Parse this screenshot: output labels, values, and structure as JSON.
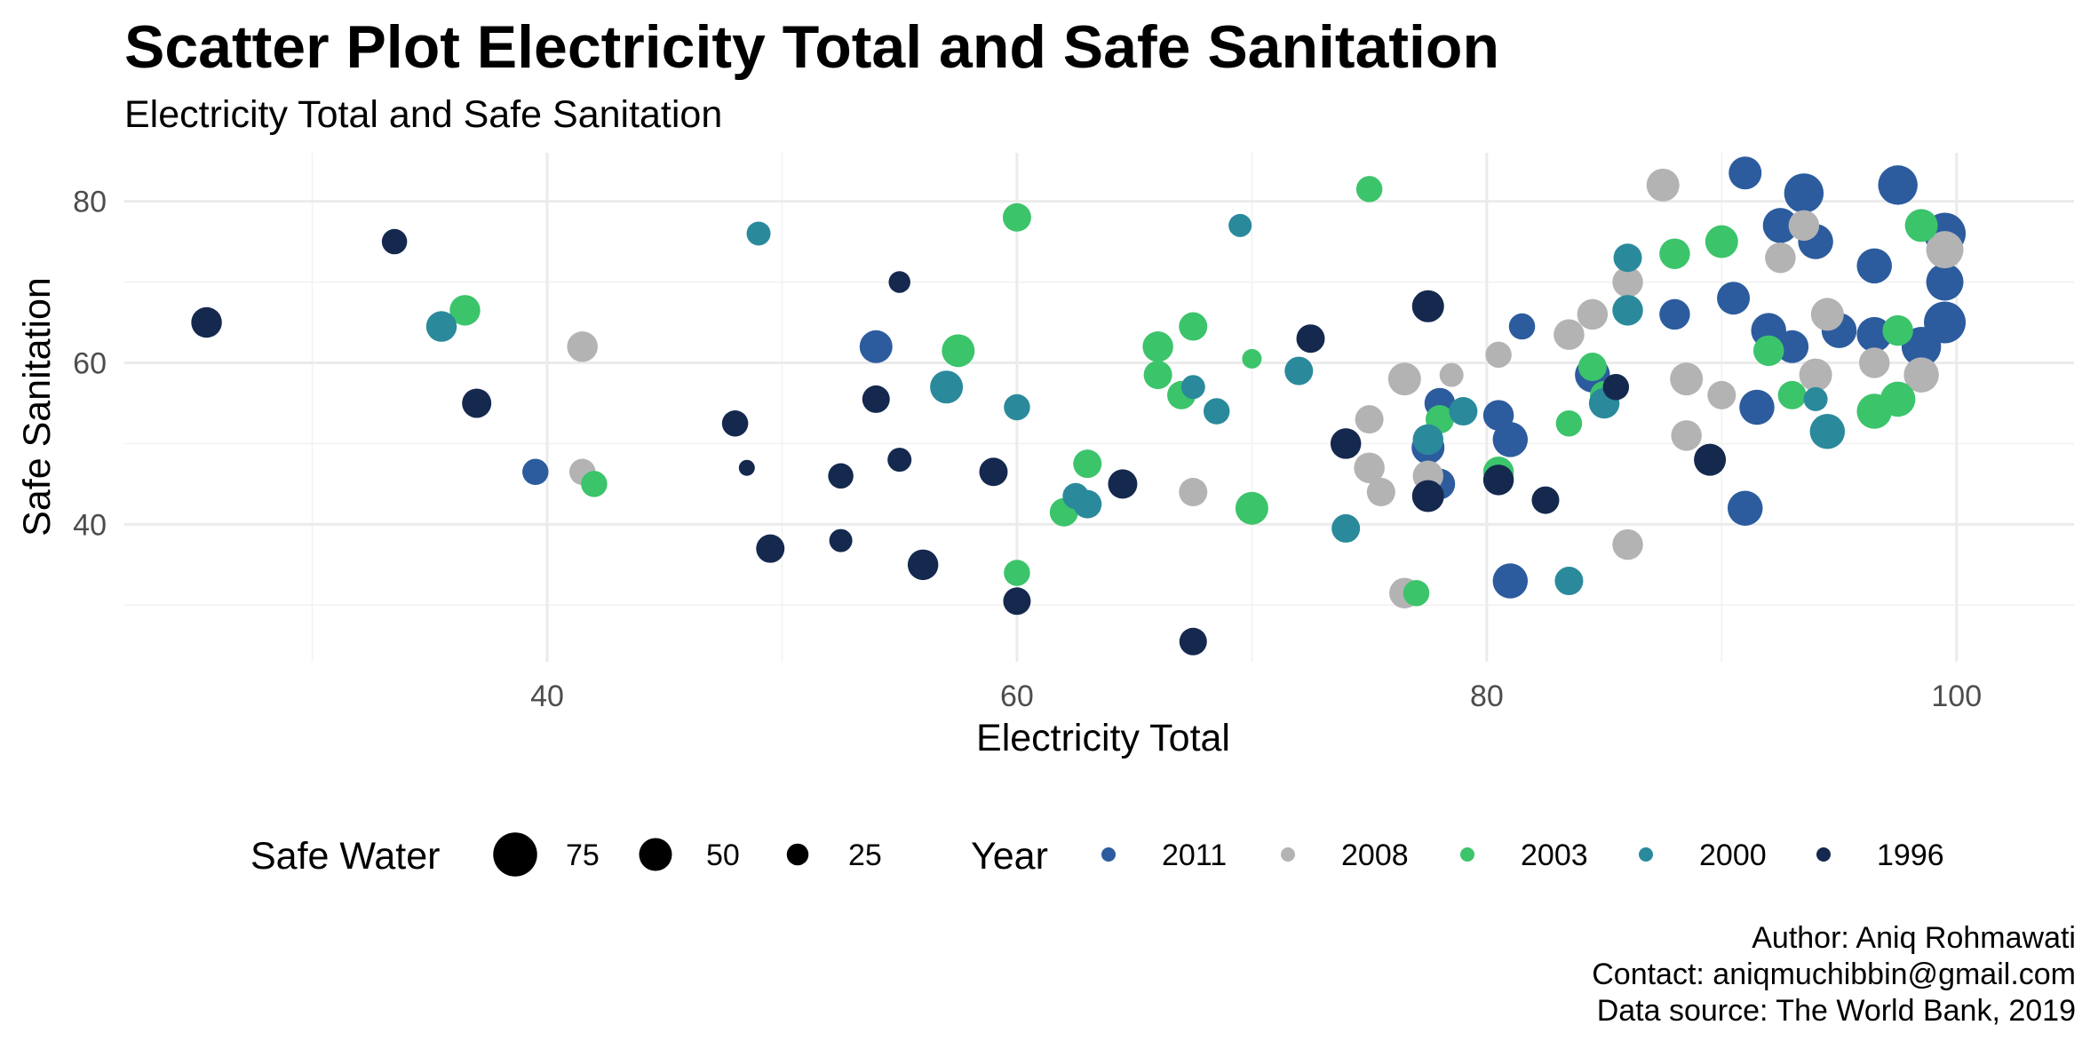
{
  "chart_data": {
    "type": "scatter",
    "title": "Scatter Plot Electricity Total and Safe Sanitation",
    "subtitle": "Electricity Total and Safe Sanitation",
    "xlabel": "Electricity Total",
    "ylabel": "Safe Sanitation",
    "xlim": [
      22,
      105
    ],
    "ylim": [
      23,
      86
    ],
    "x_ticks": [
      40,
      60,
      80,
      100
    ],
    "y_ticks": [
      40,
      60,
      80
    ],
    "x_tick_labels": [
      "40",
      "60",
      "80",
      "100"
    ],
    "y_tick_labels": [
      "40",
      "60",
      "80"
    ],
    "grid": true,
    "size_legend": {
      "title": "Safe Water",
      "values": [
        75,
        50,
        25
      ],
      "labels": [
        "75",
        "50",
        "25"
      ]
    },
    "color_legend": {
      "title": "Year",
      "entries": [
        {
          "label": "2011",
          "color": "#2c5c9e"
        },
        {
          "label": "2008",
          "color": "#b3b3b3"
        },
        {
          "label": "2003",
          "color": "#3cc46b"
        },
        {
          "label": "2000",
          "color": "#2a8a9c"
        },
        {
          "label": "1996",
          "color": "#15294f"
        }
      ]
    },
    "legend_position": "bottom",
    "series": [
      {
        "year": "2011",
        "points": [
          [
            91,
            83.5,
            50
          ],
          [
            93.5,
            81,
            65
          ],
          [
            97.5,
            82,
            65
          ],
          [
            92.5,
            77,
            55
          ],
          [
            94,
            75,
            55
          ],
          [
            96.5,
            72,
            55
          ],
          [
            99.5,
            76,
            70
          ],
          [
            99.5,
            70,
            60
          ],
          [
            99.5,
            65,
            70
          ],
          [
            98.5,
            62,
            65
          ],
          [
            90.5,
            68,
            50
          ],
          [
            92,
            64,
            55
          ],
          [
            93,
            62,
            50
          ],
          [
            95,
            64,
            55
          ],
          [
            96.5,
            63.5,
            55
          ],
          [
            88,
            66,
            45
          ],
          [
            84.5,
            58.5,
            55
          ],
          [
            91.5,
            54.5,
            55
          ],
          [
            91,
            42,
            55
          ],
          [
            81,
            50.5,
            55
          ],
          [
            80.5,
            53.5,
            45
          ],
          [
            78,
            55,
            45
          ],
          [
            77.5,
            49.5,
            50
          ],
          [
            78,
            45,
            45
          ],
          [
            81,
            33,
            55
          ],
          [
            81.5,
            64.5,
            35
          ],
          [
            54,
            62,
            50
          ],
          [
            39.5,
            46.5,
            35
          ]
        ]
      },
      {
        "year": "2008",
        "points": [
          [
            87.5,
            82,
            50
          ],
          [
            92.5,
            73,
            45
          ],
          [
            93.5,
            77,
            45
          ],
          [
            99.5,
            74,
            60
          ],
          [
            94.5,
            66,
            50
          ],
          [
            86,
            70,
            45
          ],
          [
            84.5,
            66,
            45
          ],
          [
            83.5,
            63.5,
            45
          ],
          [
            80.5,
            61,
            35
          ],
          [
            78.5,
            58.5,
            30
          ],
          [
            76.5,
            58,
            50
          ],
          [
            75,
            53,
            40
          ],
          [
            75,
            47,
            45
          ],
          [
            75.5,
            44,
            40
          ],
          [
            77.5,
            46,
            45
          ],
          [
            76.5,
            31.5,
            45
          ],
          [
            86,
            37.5,
            45
          ],
          [
            88.5,
            51,
            45
          ],
          [
            90,
            56,
            40
          ],
          [
            88.5,
            58,
            50
          ],
          [
            94,
            58.5,
            50
          ],
          [
            96.5,
            60,
            45
          ],
          [
            98.5,
            58.5,
            55
          ],
          [
            67.5,
            44,
            40
          ],
          [
            41.5,
            62,
            45
          ],
          [
            41.5,
            46.5,
            35
          ]
        ]
      },
      {
        "year": "2003",
        "points": [
          [
            75,
            81.5,
            35
          ],
          [
            60,
            78,
            40
          ],
          [
            88,
            73.5,
            45
          ],
          [
            90,
            75,
            50
          ],
          [
            98.5,
            77,
            50
          ],
          [
            97.5,
            64,
            45
          ],
          [
            92,
            61.5,
            45
          ],
          [
            93,
            56,
            40
          ],
          [
            96.5,
            54,
            55
          ],
          [
            97.5,
            55.5,
            55
          ],
          [
            84.5,
            59.5,
            40
          ],
          [
            85,
            56,
            40
          ],
          [
            83.5,
            52.5,
            35
          ],
          [
            80.5,
            46.5,
            45
          ],
          [
            78,
            53,
            40
          ],
          [
            77,
            31.5,
            35
          ],
          [
            70,
            42,
            50
          ],
          [
            70,
            60.5,
            20
          ],
          [
            67.5,
            64.5,
            40
          ],
          [
            66,
            62,
            45
          ],
          [
            66,
            58.5,
            40
          ],
          [
            67,
            56,
            40
          ],
          [
            63,
            47.5,
            40
          ],
          [
            62,
            41.5,
            40
          ],
          [
            60,
            34,
            35
          ],
          [
            57.5,
            61.5,
            50
          ],
          [
            36.5,
            66.5,
            45
          ],
          [
            42,
            45,
            35
          ]
        ]
      },
      {
        "year": "2000",
        "points": [
          [
            49,
            76,
            30
          ],
          [
            69.5,
            77,
            28
          ],
          [
            86,
            73,
            40
          ],
          [
            86,
            66.5,
            45
          ],
          [
            72,
            59,
            40
          ],
          [
            67.5,
            57,
            30
          ],
          [
            68.5,
            54,
            35
          ],
          [
            60,
            54.5,
            35
          ],
          [
            57,
            57,
            50
          ],
          [
            62.5,
            43.5,
            35
          ],
          [
            63,
            42.5,
            40
          ],
          [
            74,
            39.5,
            40
          ],
          [
            77.5,
            50.5,
            45
          ],
          [
            79,
            54,
            40
          ],
          [
            83.5,
            33,
            40
          ],
          [
            85,
            55,
            45
          ],
          [
            94,
            55.5,
            30
          ],
          [
            94.5,
            51.5,
            55
          ],
          [
            35.5,
            64.5,
            45
          ]
        ]
      },
      {
        "year": "1996",
        "points": [
          [
            25.5,
            65,
            45
          ],
          [
            33.5,
            75,
            33
          ],
          [
            37,
            55,
            42
          ],
          [
            55,
            70,
            25
          ],
          [
            54,
            55.5,
            38
          ],
          [
            48,
            52.5,
            35
          ],
          [
            48.5,
            47,
            12
          ],
          [
            49.5,
            37,
            40
          ],
          [
            52.5,
            46,
            33
          ],
          [
            52.5,
            38,
            28
          ],
          [
            55,
            48,
            30
          ],
          [
            56,
            35,
            45
          ],
          [
            59,
            46.5,
            40
          ],
          [
            60,
            30.5,
            38
          ],
          [
            64.5,
            45,
            42
          ],
          [
            67.5,
            25.5,
            38
          ],
          [
            72.5,
            63,
            40
          ],
          [
            74,
            50,
            45
          ],
          [
            77.5,
            67,
            48
          ],
          [
            77.5,
            43.5,
            48
          ],
          [
            80.5,
            45.5,
            45
          ],
          [
            82.5,
            43,
            38
          ],
          [
            85.5,
            57,
            35
          ],
          [
            89.5,
            48,
            48
          ]
        ]
      }
    ]
  },
  "caption": {
    "line1": "Author: Aniq Rohmawati",
    "line2": "Contact: aniqmuchibbin@gmail.com",
    "line3": "Data source: The World Bank, 2019"
  }
}
